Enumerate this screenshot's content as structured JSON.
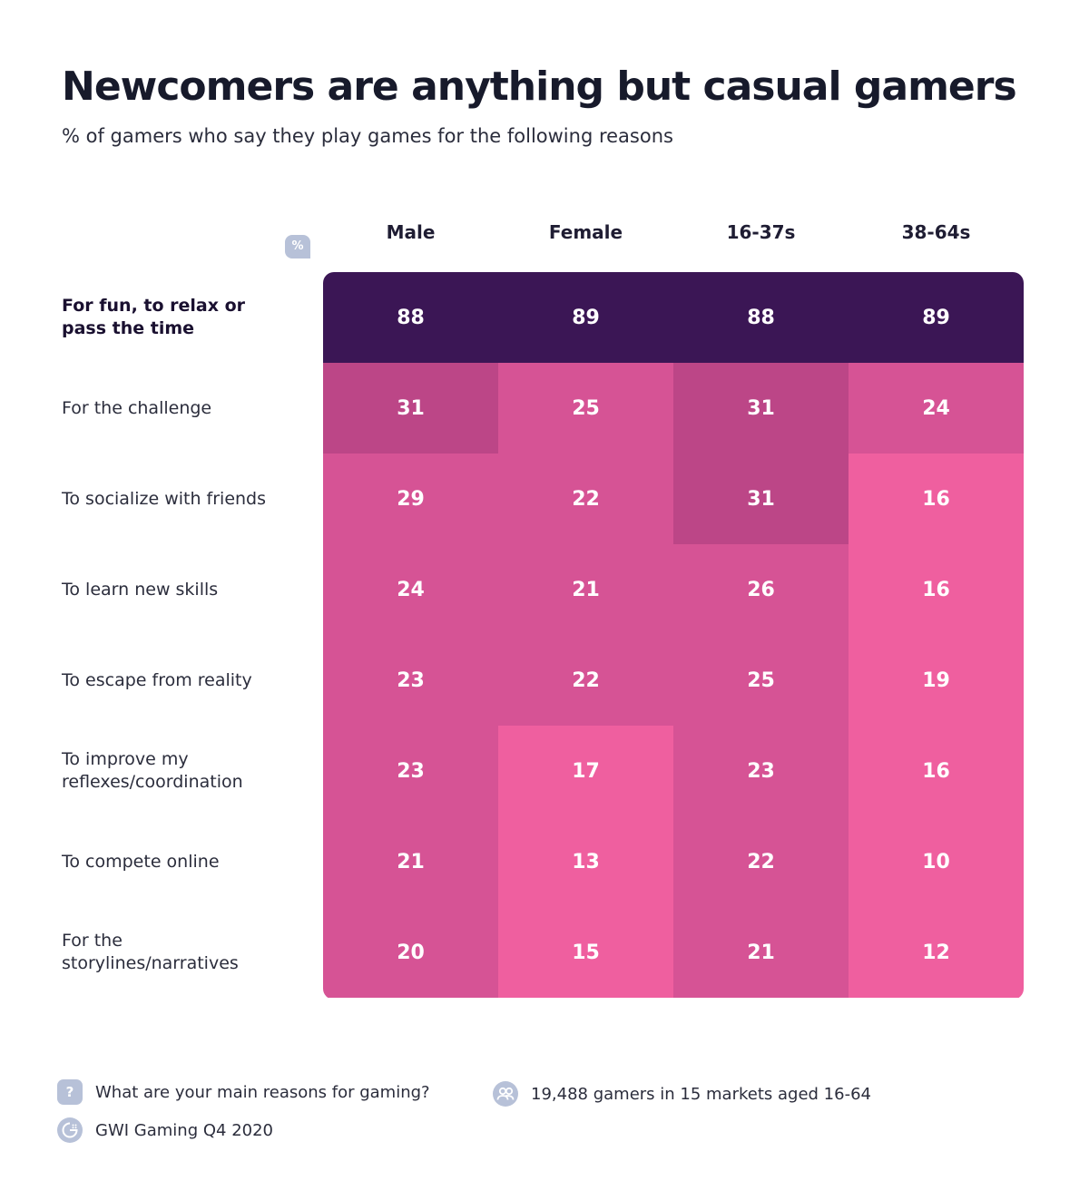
{
  "title": "Newcomers are anything but casual gamers",
  "subtitle": "% of gamers who say they play games for the following reasons",
  "unit_badge": "%",
  "colors": {
    "top_row": "#3b1655",
    "tier_high": "#bc4687",
    "tier_mid": "#d65395",
    "tier_low": "#ef5f9f",
    "icon": "#b7c1d8"
  },
  "chart_data": {
    "type": "heatmap",
    "columns": [
      "Male",
      "Female",
      "16-37s",
      "38-64s"
    ],
    "rows": [
      {
        "label": "For fun, to relax or pass the time",
        "values": [
          88,
          89,
          88,
          89
        ]
      },
      {
        "label": "For the challenge",
        "values": [
          31,
          25,
          31,
          24
        ]
      },
      {
        "label": "To socialize with friends",
        "values": [
          29,
          22,
          31,
          16
        ]
      },
      {
        "label": "To learn new skills",
        "values": [
          24,
          21,
          26,
          16
        ]
      },
      {
        "label": "To escape from reality",
        "values": [
          23,
          22,
          25,
          19
        ]
      },
      {
        "label": "To improve my reflexes/coordination",
        "values": [
          23,
          17,
          23,
          16
        ]
      },
      {
        "label": "To compete online",
        "values": [
          21,
          13,
          22,
          10
        ]
      },
      {
        "label": "For the storylines/narratives",
        "values": [
          20,
          15,
          21,
          12
        ]
      }
    ]
  },
  "footer": {
    "question_icon": "question-icon",
    "question": "What are your main reasons for gaming?",
    "audience_icon": "people-icon",
    "audience": "19,488 gamers in 15 markets aged 16-64",
    "source_icon": "gwi-logo-icon",
    "source": "GWI Gaming Q4 2020"
  }
}
